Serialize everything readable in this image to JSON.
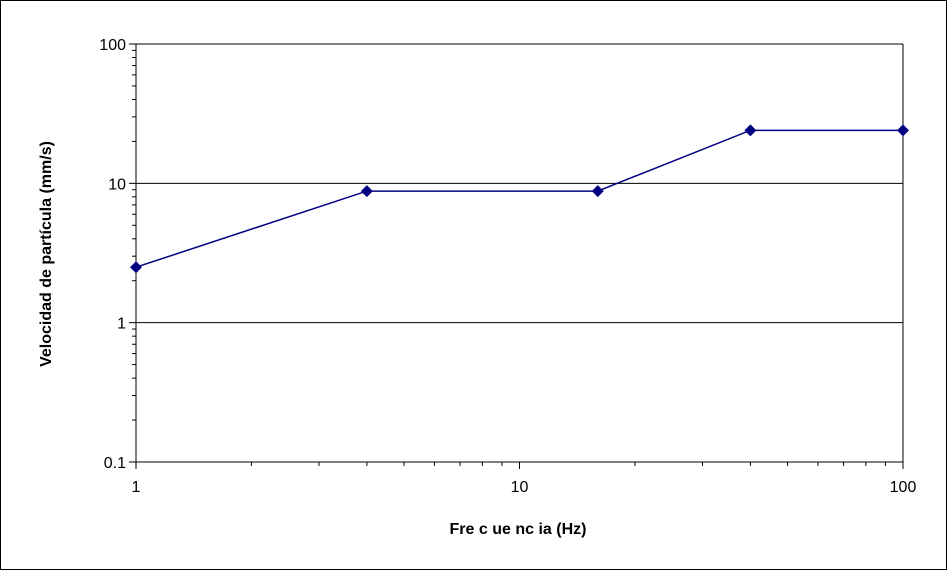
{
  "chart_data": {
    "type": "line",
    "title": "",
    "xlabel": "Fre c ue nc ia (Hz)",
    "ylabel": "Velocidad de partícula (mm/s)",
    "x_scale": "log",
    "y_scale": "log",
    "xlim": [
      1,
      100
    ],
    "ylim": [
      0.1,
      100
    ],
    "x_tick_labels": [
      "1",
      "10",
      "100"
    ],
    "y_tick_labels": [
      "0.1",
      "1",
      "10",
      "100"
    ],
    "grid": "horizontal major lines",
    "legend": "none",
    "series": [
      {
        "x": [
          1,
          4,
          16,
          40,
          100
        ],
        "y": [
          2.5,
          8.8,
          8.8,
          24,
          24
        ],
        "color": "#000080",
        "marker": "diamond"
      }
    ]
  }
}
